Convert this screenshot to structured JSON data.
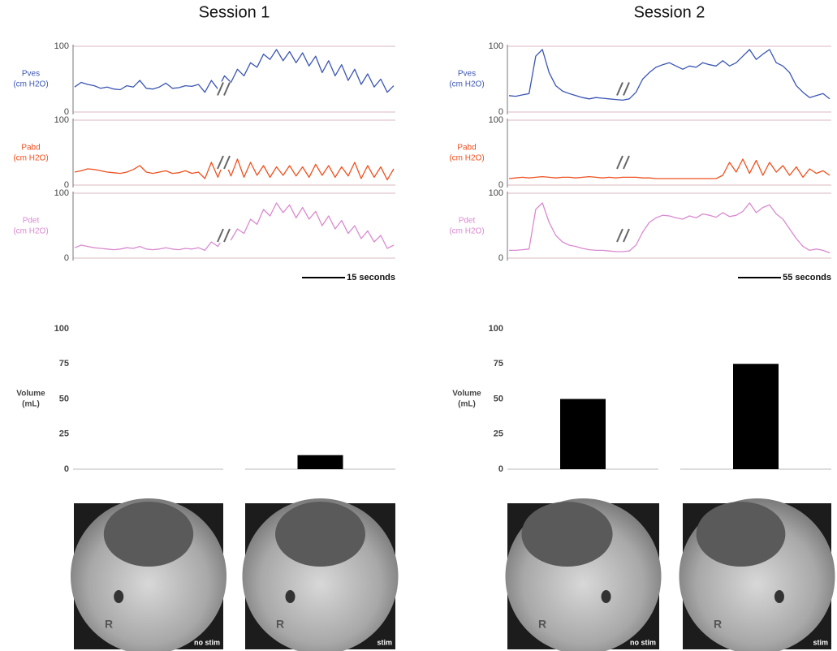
{
  "chart_data": [
    {
      "type": "line",
      "title": "Session 1",
      "y_label": "Pves",
      "y_unit": "(cm H2O)",
      "color": "#3a55b4",
      "ylim": [
        0,
        100
      ],
      "yticks": [
        0,
        100
      ],
      "grid": true,
      "values": [
        38,
        45,
        42,
        40,
        36,
        38,
        35,
        34,
        40,
        38,
        48,
        36,
        35,
        38,
        44,
        36,
        37,
        40,
        39,
        42,
        30,
        48,
        35,
        55,
        45,
        65,
        55,
        75,
        68,
        88,
        80,
        95,
        78,
        92,
        75,
        90,
        70,
        85,
        60,
        78,
        55,
        72,
        48,
        65,
        42,
        58,
        38,
        50,
        30,
        40
      ]
    },
    {
      "type": "line",
      "y_label": "Pabd",
      "y_unit": "(cm H2O)",
      "color": "#f0501e",
      "ylim": [
        0,
        100
      ],
      "yticks": [
        0,
        100
      ],
      "grid": true,
      "values": [
        20,
        22,
        25,
        24,
        22,
        20,
        19,
        18,
        20,
        24,
        30,
        20,
        18,
        20,
        22,
        18,
        19,
        22,
        18,
        20,
        10,
        35,
        12,
        38,
        14,
        40,
        12,
        35,
        15,
        30,
        12,
        28,
        15,
        30,
        14,
        28,
        12,
        32,
        15,
        30,
        12,
        28,
        14,
        35,
        10,
        30,
        12,
        28,
        8,
        25
      ]
    },
    {
      "type": "line",
      "y_label": "Pdet",
      "y_unit": "(cm H2O)",
      "color": "#d98ad0",
      "ylim": [
        0,
        100
      ],
      "yticks": [
        0,
        100
      ],
      "grid": true,
      "annotation": "15 seconds",
      "values": [
        16,
        20,
        18,
        16,
        15,
        14,
        13,
        14,
        16,
        15,
        18,
        14,
        13,
        14,
        16,
        14,
        13,
        15,
        14,
        16,
        12,
        25,
        18,
        35,
        28,
        45,
        38,
        60,
        52,
        75,
        65,
        85,
        70,
        82,
        62,
        78,
        60,
        72,
        50,
        65,
        45,
        58,
        38,
        50,
        30,
        42,
        25,
        35,
        15,
        20
      ]
    },
    {
      "type": "bar",
      "y_label": "Volume",
      "y_unit": "(mL)",
      "color": "#000000",
      "ylim": [
        0,
        100
      ],
      "yticks": [
        0,
        25,
        50,
        75,
        100
      ],
      "grid": false,
      "categories": [
        null,
        null
      ],
      "values": [
        0,
        10
      ]
    },
    {
      "type": "line",
      "title": "Session 2",
      "y_label": "Pves",
      "y_unit": "(cm H2O)",
      "color": "#3a55b4",
      "ylim": [
        0,
        100
      ],
      "yticks": [
        0,
        100
      ],
      "grid": true,
      "values": [
        25,
        24,
        26,
        28,
        85,
        95,
        60,
        40,
        32,
        28,
        25,
        22,
        20,
        22,
        21,
        20,
        19,
        18,
        20,
        30,
        50,
        60,
        68,
        72,
        75,
        70,
        65,
        70,
        68,
        75,
        72,
        70,
        78,
        70,
        75,
        85,
        95,
        80,
        88,
        95,
        75,
        70,
        60,
        40,
        30,
        22,
        25,
        28,
        20
      ]
    },
    {
      "type": "line",
      "y_label": "Pabd",
      "y_unit": "(cm H2O)",
      "color": "#f0501e",
      "ylim": [
        0,
        100
      ],
      "yticks": [
        0,
        100
      ],
      "grid": true,
      "values": [
        10,
        11,
        12,
        11,
        12,
        13,
        12,
        11,
        12,
        12,
        11,
        12,
        13,
        12,
        11,
        12,
        11,
        12,
        12,
        12,
        11,
        11,
        10,
        10,
        10,
        10,
        10,
        10,
        10,
        10,
        10,
        10,
        15,
        35,
        20,
        40,
        18,
        38,
        15,
        35,
        20,
        30,
        15,
        28,
        12,
        25,
        18,
        22,
        15
      ]
    },
    {
      "type": "line",
      "y_label": "Pdet",
      "y_unit": "(cm H2O)",
      "color": "#d98ad0",
      "ylim": [
        0,
        100
      ],
      "yticks": [
        0,
        100
      ],
      "grid": true,
      "annotation": "55 seconds",
      "values": [
        12,
        12,
        13,
        14,
        75,
        85,
        55,
        35,
        25,
        20,
        18,
        15,
        13,
        12,
        12,
        11,
        10,
        10,
        11,
        20,
        40,
        55,
        62,
        66,
        65,
        62,
        60,
        65,
        62,
        68,
        66,
        63,
        70,
        64,
        66,
        72,
        85,
        70,
        78,
        82,
        68,
        60,
        45,
        30,
        18,
        12,
        14,
        12,
        8
      ]
    },
    {
      "type": "bar",
      "y_label": "Volume",
      "y_unit": "(mL)",
      "color": "#000000",
      "ylim": [
        0,
        100
      ],
      "yticks": [
        0,
        25,
        50,
        75,
        100
      ],
      "grid": false,
      "categories": [
        null,
        null
      ],
      "values": [
        50,
        75
      ]
    }
  ],
  "images": [
    {
      "label": "no stim",
      "marker": "R"
    },
    {
      "label": "stim",
      "marker": "R"
    },
    {
      "label": "no stim",
      "marker": "R"
    },
    {
      "label": "stim",
      "marker": "R"
    }
  ]
}
